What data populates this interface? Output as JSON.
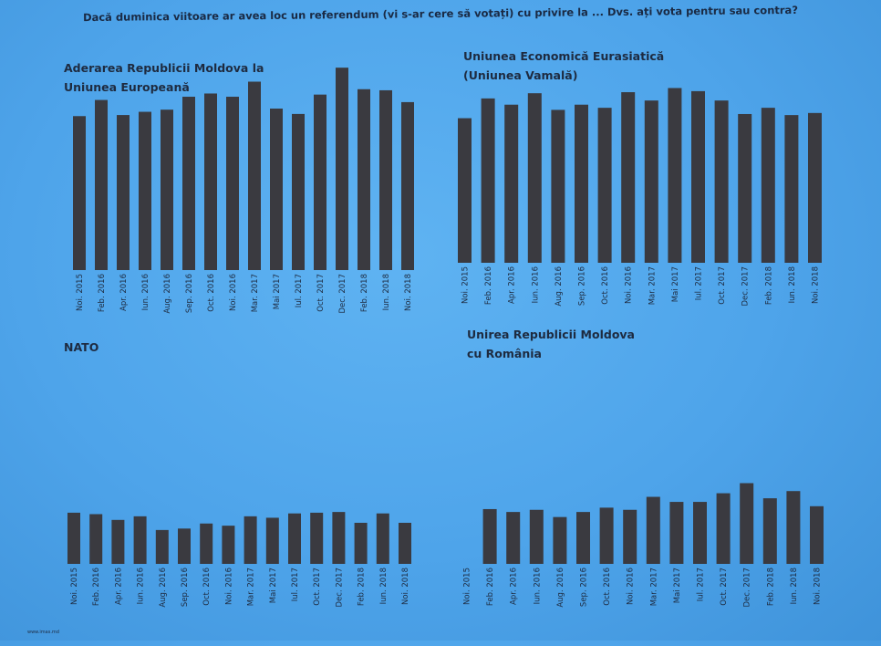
{
  "header": {
    "question": "Dacă duminica viitoare ar avea loc un referendum (vi s-ar cere să votați) cu privire la ... Dvs. ați vota pentru sau contra?"
  },
  "footer": {
    "source": "www.imas.md"
  },
  "colors": {
    "background": "#4a9fe6",
    "bar": "#3a3a40",
    "text": "#1e2b40"
  },
  "chart_data": [
    {
      "type": "bar",
      "title": "Aderarea Republicii Moldova la\nUniunea Europeană",
      "categories": [
        "Noi. 2015",
        "Feb. 2016",
        "Apr. 2016",
        "Iun. 2016",
        "Aug. 2016",
        "Sep. 2016",
        "Oct. 2016",
        "Noi. 2016",
        "Mar. 2017",
        "Mai 2017",
        "Iul. 2017",
        "Oct. 2017",
        "Dec. 2017",
        "Feb. 2018",
        "Iun. 2018",
        "Noi. 2018"
      ],
      "values": [
        143,
        158,
        144,
        147,
        149,
        161,
        164,
        161,
        175,
        150,
        145,
        163,
        188,
        168,
        167,
        156
      ],
      "ylim": [
        0,
        200
      ],
      "grid": false,
      "legend": "none"
    },
    {
      "type": "bar",
      "title": "Uniunea Economică Eurasiatică\n(Uniunea Vamală)",
      "categories": [
        "Noi. 2015",
        "Feb. 2016",
        "Apr. 2016",
        "Iun. 2016",
        "Aug. 2016",
        "Sep. 2016",
        "Oct. 2016",
        "Noi. 2016",
        "Mar. 2017",
        "Mai 2017",
        "Iul. 2017",
        "Oct. 2017",
        "Dec. 2017",
        "Feb. 2018",
        "Iun. 2018",
        "Noi. 2018"
      ],
      "values": [
        139,
        158,
        152,
        163,
        147,
        152,
        149,
        164,
        156,
        168,
        165,
        156,
        143,
        149,
        142,
        144
      ],
      "ylim": [
        0,
        200
      ],
      "grid": false,
      "legend": "none"
    },
    {
      "type": "bar",
      "title": "NATO",
      "categories": [
        "Noi. 2015",
        "Feb. 2016",
        "Apr. 2016",
        "Iun. 2016",
        "Aug. 2016",
        "Sep. 2016",
        "Oct. 2016",
        "Noi. 2016",
        "Mar. 2017",
        "Mai 2017",
        "Iul. 2017",
        "Oct. 2017",
        "Dec. 2017",
        "Feb. 2018",
        "Iun. 2018",
        "Noi. 2018"
      ],
      "values": [
        71,
        69,
        61,
        66,
        47,
        49,
        56,
        53,
        66,
        64,
        70,
        71,
        72,
        57,
        70,
        57
      ],
      "ylim": [
        0,
        200
      ],
      "grid": false,
      "legend": "none"
    },
    {
      "type": "bar",
      "title": "Unirea Republicii Moldova\ncu România",
      "categories": [
        "Noi. 2015",
        "Feb. 2016",
        "Apr. 2016",
        "Iun. 2016",
        "Aug. 2016",
        "Sep. 2016",
        "Oct. 2016",
        "Noi. 2016",
        "Mar. 2017",
        "Mai 2017",
        "Iul. 2017",
        "Oct. 2017",
        "Dec. 2017",
        "Feb. 2018",
        "Iun. 2018",
        "Noi. 2018"
      ],
      "values": [
        0,
        76,
        72,
        75,
        65,
        72,
        78,
        75,
        93,
        86,
        86,
        98,
        112,
        91,
        101,
        80
      ],
      "ylim": [
        0,
        200
      ],
      "grid": false,
      "legend": "none"
    }
  ]
}
